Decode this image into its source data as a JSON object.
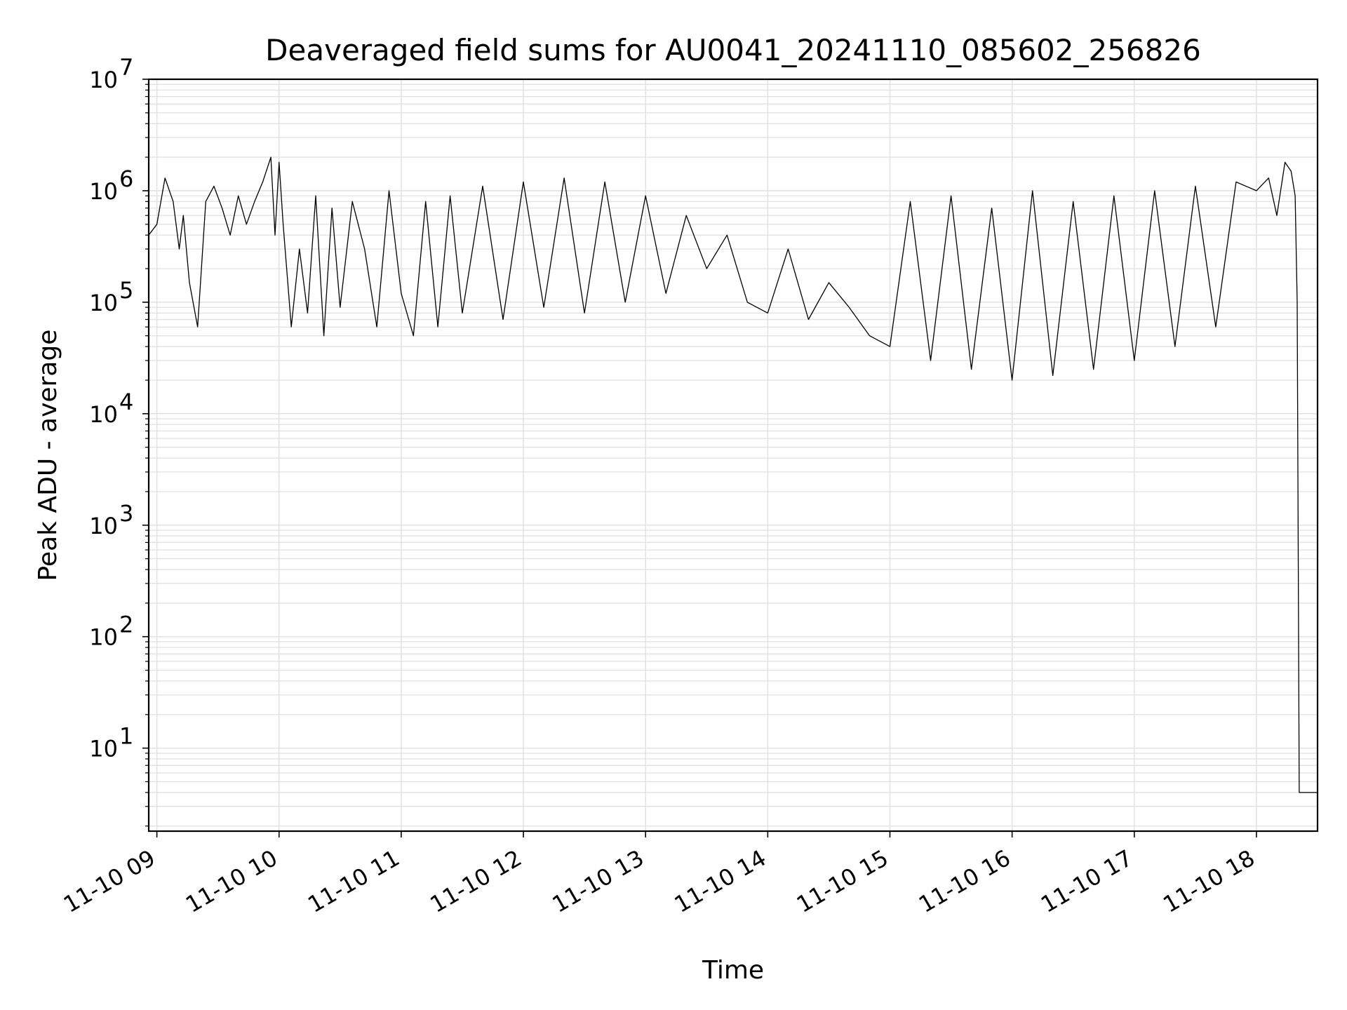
{
  "chart_data": {
    "type": "line",
    "title": "Deaveraged field sums for AU0041_20241110_085602_256826",
    "xlabel": "Time",
    "ylabel": "Peak ADU - average",
    "yscale": "log",
    "ylim": [
      1.8,
      10000000
    ],
    "xlim": [
      "2024-11-10 08:56",
      "2024-11-10 18:30"
    ],
    "x_ticks": [
      "11-10 09",
      "11-10 10",
      "11-10 11",
      "11-10 12",
      "11-10 13",
      "11-10 14",
      "11-10 15",
      "11-10 16",
      "11-10 17",
      "11-10 18"
    ],
    "y_ticks": [
      {
        "value": 10,
        "base": "10",
        "exp": "1"
      },
      {
        "value": 100,
        "base": "10",
        "exp": "2"
      },
      {
        "value": 1000,
        "base": "10",
        "exp": "3"
      },
      {
        "value": 10000,
        "base": "10",
        "exp": "4"
      },
      {
        "value": 100000,
        "base": "10",
        "exp": "5"
      },
      {
        "value": 1000000,
        "base": "10",
        "exp": "6"
      },
      {
        "value": 10000000,
        "base": "10",
        "exp": "7"
      }
    ],
    "grid": true,
    "line_color": "#000000",
    "grid_color": "#e3e3e3",
    "series": [
      {
        "x": [
          "08:56",
          "09:00",
          "09:04",
          "09:08",
          "09:11",
          "09:13",
          "09:16",
          "09:20",
          "09:24",
          "09:28",
          "09:32",
          "09:36",
          "09:40",
          "09:44",
          "09:48",
          "09:52",
          "09:56",
          "09:58",
          "10:00",
          "10:02",
          "10:06",
          "10:10",
          "10:14",
          "10:18",
          "10:22",
          "10:26",
          "10:30",
          "10:36",
          "10:42",
          "10:48",
          "10:54",
          "11:00",
          "11:06",
          "11:12",
          "11:18",
          "11:24",
          "11:30",
          "11:40",
          "11:50",
          "12:00",
          "12:10",
          "12:20",
          "12:30",
          "12:40",
          "12:50",
          "13:00",
          "13:10",
          "13:20",
          "13:30",
          "13:40",
          "13:50",
          "14:00",
          "14:10",
          "14:20",
          "14:30",
          "14:40",
          "14:50",
          "15:00",
          "15:10",
          "15:20",
          "15:30",
          "15:40",
          "15:50",
          "16:00",
          "16:10",
          "16:20",
          "16:30",
          "16:40",
          "16:50",
          "17:00",
          "17:10",
          "17:20",
          "17:30",
          "17:40",
          "17:50",
          "18:00",
          "18:06",
          "18:10",
          "18:14",
          "18:17",
          "18:19",
          "18:20",
          "18:21",
          "18:30"
        ],
        "y": [
          400000,
          500000,
          1300000,
          800000,
          300000,
          600000,
          150000,
          60000,
          800000,
          1100000,
          700000,
          400000,
          900000,
          500000,
          800000,
          1200000,
          2000000,
          400000,
          1800000,
          500000,
          60000,
          300000,
          80000,
          900000,
          50000,
          700000,
          90000,
          800000,
          300000,
          60000,
          1000000,
          120000,
          50000,
          800000,
          60000,
          900000,
          80000,
          1100000,
          70000,
          1200000,
          90000,
          1300000,
          80000,
          1200000,
          100000,
          900000,
          120000,
          600000,
          200000,
          400000,
          100000,
          80000,
          300000,
          70000,
          150000,
          90000,
          50000,
          40000,
          800000,
          30000,
          900000,
          25000,
          700000,
          20000,
          1000000,
          22000,
          800000,
          25000,
          900000,
          30000,
          1000000,
          40000,
          1100000,
          60000,
          1200000,
          1000000,
          1300000,
          600000,
          1800000,
          1500000,
          900000,
          100000,
          4,
          4
        ]
      }
    ]
  }
}
